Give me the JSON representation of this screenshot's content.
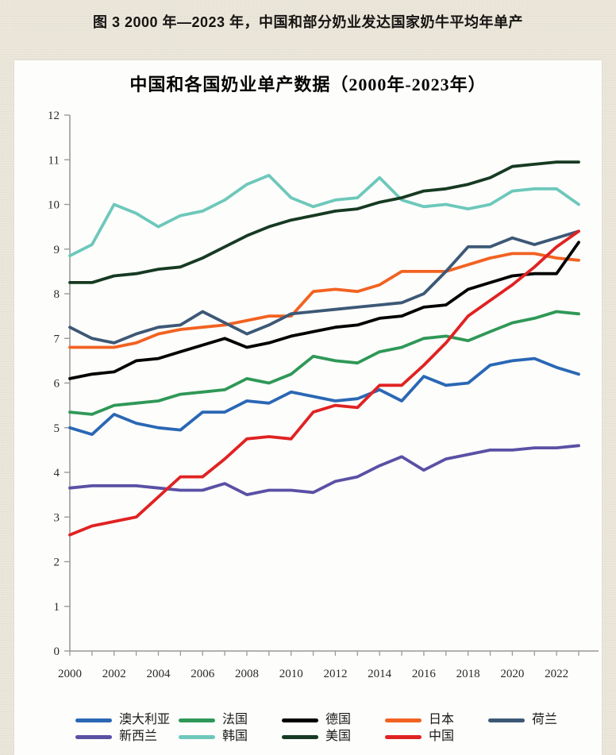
{
  "page": {
    "caption": "图 3  2000 年—2023 年，中国和部分奶业发达国家奶牛平均年单产"
  },
  "chart": {
    "title": "中国和各国奶业单产数据（2000年-2023年）"
  },
  "chart_data": {
    "type": "line",
    "title": "中国和各国奶业单产数据（2000年-2023年）",
    "xlabel": "",
    "ylabel": "",
    "x": [
      2000,
      2001,
      2002,
      2003,
      2004,
      2005,
      2006,
      2007,
      2008,
      2009,
      2010,
      2011,
      2012,
      2013,
      2014,
      2015,
      2016,
      2017,
      2018,
      2019,
      2020,
      2021,
      2022,
      2023
    ],
    "xtick_labels": [
      "2000",
      "2002",
      "2004",
      "2006",
      "2008",
      "2010",
      "2012",
      "2014",
      "2016",
      "2018",
      "2020",
      "2022"
    ],
    "ylim": [
      0,
      12
    ],
    "ytick_step": 1,
    "grid": false,
    "legend_position": "bottom",
    "axis_color": "#9a9a9a",
    "series": [
      {
        "name": "澳大利亚",
        "color": "#2a67b5",
        "values": [
          5.0,
          4.85,
          5.3,
          5.1,
          5.0,
          4.95,
          5.35,
          5.35,
          5.6,
          5.55,
          5.8,
          5.7,
          5.6,
          5.65,
          5.85,
          5.6,
          6.15,
          5.95,
          6.0,
          6.4,
          6.5,
          6.55,
          6.35,
          6.2
        ]
      },
      {
        "name": "法国",
        "color": "#2f9857",
        "values": [
          5.35,
          5.3,
          5.5,
          5.55,
          5.6,
          5.75,
          5.8,
          5.85,
          6.1,
          6.0,
          6.2,
          6.6,
          6.5,
          6.45,
          6.7,
          6.8,
          7.0,
          7.05,
          6.95,
          7.15,
          7.35,
          7.45,
          7.6,
          7.55
        ]
      },
      {
        "name": "德国",
        "color": "#000000",
        "values": [
          6.1,
          6.2,
          6.25,
          6.5,
          6.55,
          6.7,
          6.85,
          7.0,
          6.8,
          6.9,
          7.05,
          7.15,
          7.25,
          7.3,
          7.45,
          7.5,
          7.7,
          7.75,
          8.1,
          8.25,
          8.4,
          8.45,
          8.45,
          9.15
        ]
      },
      {
        "name": "日本",
        "color": "#f26221",
        "values": [
          6.8,
          6.8,
          6.8,
          6.9,
          7.1,
          7.2,
          7.25,
          7.3,
          7.4,
          7.5,
          7.5,
          8.05,
          8.1,
          8.05,
          8.2,
          8.5,
          8.5,
          8.5,
          8.65,
          8.8,
          8.9,
          8.9,
          8.8,
          8.75
        ]
      },
      {
        "name": "荷兰",
        "color": "#3d5876",
        "values": [
          7.25,
          7.0,
          6.9,
          7.1,
          7.25,
          7.3,
          7.6,
          7.35,
          7.1,
          7.3,
          7.55,
          7.6,
          7.65,
          7.7,
          7.75,
          7.8,
          8.0,
          8.5,
          9.05,
          9.05,
          9.25,
          9.1,
          9.25,
          9.4
        ]
      },
      {
        "name": "新西兰",
        "color": "#5a50a5",
        "values": [
          3.65,
          3.7,
          3.7,
          3.7,
          3.65,
          3.6,
          3.6,
          3.75,
          3.5,
          3.6,
          3.6,
          3.55,
          3.8,
          3.9,
          4.15,
          4.35,
          4.05,
          4.3,
          4.4,
          4.5,
          4.5,
          4.55,
          4.55,
          4.6
        ]
      },
      {
        "name": "韩国",
        "color": "#6dc8bb",
        "values": [
          8.85,
          9.1,
          10.0,
          9.8,
          9.5,
          9.75,
          9.85,
          10.1,
          10.45,
          10.65,
          10.15,
          9.95,
          10.1,
          10.15,
          10.6,
          10.1,
          9.95,
          10.0,
          9.9,
          10.0,
          10.3,
          10.35,
          10.35,
          10.0
        ]
      },
      {
        "name": "美国",
        "color": "#163a22",
        "values": [
          8.25,
          8.25,
          8.4,
          8.45,
          8.55,
          8.6,
          8.8,
          9.05,
          9.3,
          9.5,
          9.65,
          9.75,
          9.85,
          9.9,
          10.05,
          10.15,
          10.3,
          10.35,
          10.45,
          10.6,
          10.85,
          10.9,
          10.95,
          10.95
        ]
      },
      {
        "name": "中国",
        "color": "#e02222",
        "values": [
          2.6,
          2.8,
          2.9,
          3.0,
          3.45,
          3.9,
          3.9,
          4.3,
          4.75,
          4.8,
          4.75,
          5.35,
          5.5,
          5.45,
          5.95,
          5.95,
          6.4,
          6.9,
          7.5,
          7.85,
          8.2,
          8.6,
          9.05,
          9.4
        ]
      }
    ],
    "legend_rows": [
      [
        0,
        1,
        2,
        3,
        4
      ],
      [
        5,
        6,
        7,
        8
      ]
    ]
  }
}
